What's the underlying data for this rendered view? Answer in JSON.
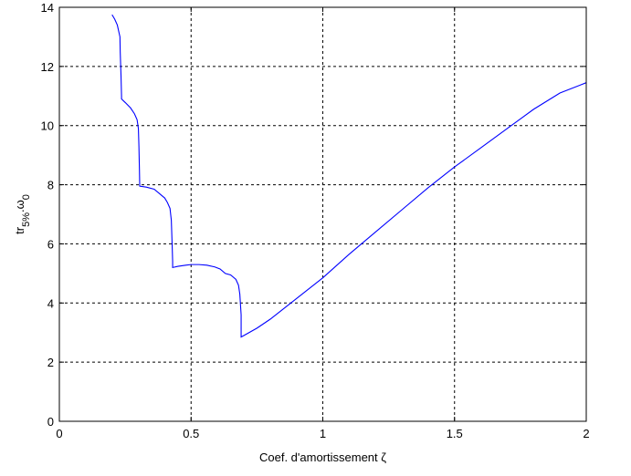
{
  "chart_data": {
    "type": "line",
    "title": "",
    "xlabel": "Coef. d'amortissement ζ",
    "ylabel": {
      "base": "tr",
      "sub1": "5%",
      "mid": ".ω",
      "sub2": "0"
    },
    "xlim": [
      0,
      2
    ],
    "ylim": [
      0,
      14
    ],
    "xticks": [
      0,
      0.5,
      1,
      1.5,
      2
    ],
    "xtick_labels": [
      "0",
      "0.5",
      "1",
      "1.5",
      "2"
    ],
    "yticks": [
      0,
      2,
      4,
      6,
      8,
      10,
      12,
      14
    ],
    "ytick_labels": [
      "0",
      "2",
      "4",
      "6",
      "8",
      "10",
      "12",
      "14"
    ],
    "grid": true,
    "line_color": "#0000ff",
    "series": [
      {
        "x": [
          0.2,
          0.21,
          0.22,
          0.23,
          0.231,
          0.234,
          0.236,
          0.236,
          0.25,
          0.27,
          0.285,
          0.295,
          0.3,
          0.302,
          0.304,
          0.305,
          0.305,
          0.33,
          0.36,
          0.38,
          0.4,
          0.41,
          0.42,
          0.425,
          0.428,
          0.43,
          0.43,
          0.45,
          0.48,
          0.5,
          0.53,
          0.56,
          0.59,
          0.61,
          0.63,
          0.65,
          0.67,
          0.68,
          0.685,
          0.69,
          0.69,
          0.7,
          0.75,
          0.8,
          0.85,
          0.9,
          0.95,
          1.0,
          1.1,
          1.2,
          1.3,
          1.4,
          1.5,
          1.6,
          1.7,
          1.8,
          1.9,
          2.0
        ],
        "y": [
          13.75,
          13.6,
          13.4,
          13.0,
          12.5,
          11.7,
          11.0,
          10.9,
          10.78,
          10.6,
          10.4,
          10.2,
          9.9,
          9.3,
          8.5,
          8.0,
          7.95,
          7.92,
          7.85,
          7.7,
          7.55,
          7.4,
          7.2,
          6.8,
          6.0,
          5.4,
          5.2,
          5.24,
          5.28,
          5.3,
          5.3,
          5.28,
          5.22,
          5.15,
          5.0,
          4.95,
          4.8,
          4.6,
          4.3,
          3.6,
          2.85,
          2.9,
          3.15,
          3.45,
          3.8,
          4.15,
          4.5,
          4.85,
          5.65,
          6.4,
          7.15,
          7.9,
          8.6,
          9.25,
          9.9,
          10.55,
          11.1,
          11.45
        ]
      }
    ]
  }
}
